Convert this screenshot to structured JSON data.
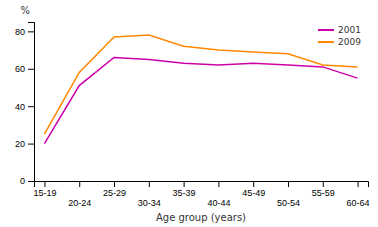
{
  "chart_data": {
    "type": "line",
    "categories": [
      "15-19",
      "20-24",
      "25-29",
      "30-34",
      "35-39",
      "40-44",
      "45-49",
      "50-54",
      "55-59",
      "60-64"
    ],
    "series": [
      {
        "name": "2001",
        "color": "#cc00aa",
        "values": [
          20,
          51,
          66,
          65,
          63,
          62,
          63,
          62,
          61,
          55
        ]
      },
      {
        "name": "2009",
        "color": "#ff8800",
        "values": [
          25,
          58,
          77,
          78,
          72,
          70,
          69,
          68,
          62,
          61
        ]
      }
    ],
    "xlabel": "Age group (years)",
    "ylabel": "%",
    "ylim": [
      0,
      85
    ],
    "yticks": [
      0,
      20,
      40,
      60,
      80
    ],
    "grid": false,
    "legend": "upper right"
  }
}
